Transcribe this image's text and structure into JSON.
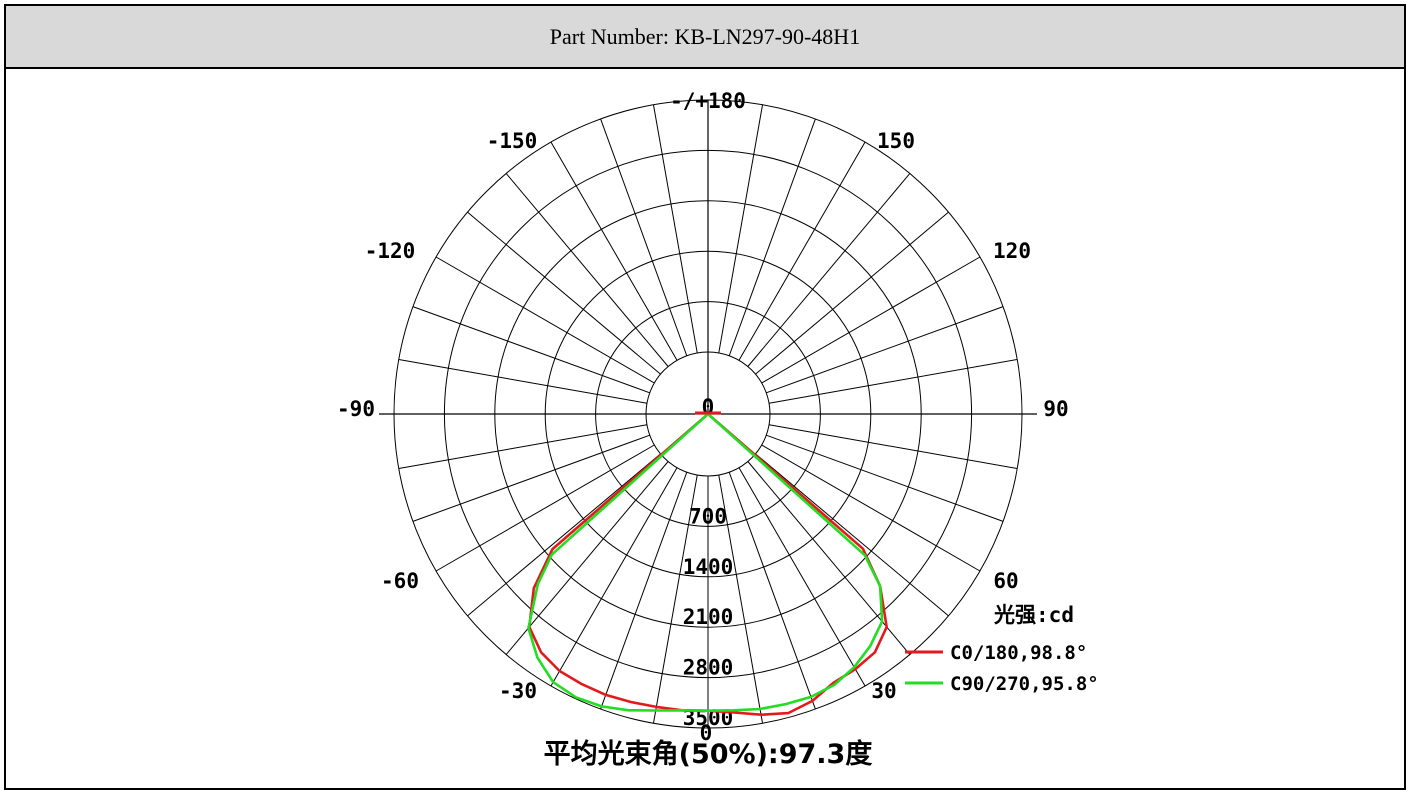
{
  "header": {
    "part_number": "Part Number: KB-LN297-90-48H1"
  },
  "chart_data": {
    "type": "polar",
    "angle_labels": [
      {
        "deg": 180,
        "text": "-/+180"
      },
      {
        "deg": -150,
        "text": "-150"
      },
      {
        "deg": 150,
        "text": "150"
      },
      {
        "deg": -120,
        "text": "-120"
      },
      {
        "deg": 120,
        "text": "120"
      },
      {
        "deg": -90,
        "text": "-90"
      },
      {
        "deg": 90,
        "text": "90"
      },
      {
        "deg": -60,
        "text": "-60"
      },
      {
        "deg": 60,
        "text": "60"
      },
      {
        "deg": -30,
        "text": "-30"
      },
      {
        "deg": 30,
        "text": "30"
      },
      {
        "deg": 0,
        "text": "0"
      }
    ],
    "radial_ticks": [
      "0",
      "700",
      "1400",
      "2100",
      "2800",
      "3500"
    ],
    "r_max": 3500,
    "legend_title": "光强:cd",
    "series": [
      {
        "name": "C0/180,98.8°",
        "color": "#e31a1c",
        "points": [
          [
            -49,
            2000
          ],
          [
            -45,
            2560
          ],
          [
            -40,
            3000
          ],
          [
            -35,
            3180
          ],
          [
            -30,
            3260
          ],
          [
            -25,
            3280
          ],
          [
            -20,
            3290
          ],
          [
            -15,
            3280
          ],
          [
            -10,
            3270
          ],
          [
            -5,
            3270
          ],
          [
            0,
            3260
          ],
          [
            5,
            3300
          ],
          [
            10,
            3380
          ],
          [
            15,
            3440
          ],
          [
            20,
            3380
          ],
          [
            25,
            3260
          ],
          [
            30,
            3230
          ],
          [
            35,
            3180
          ],
          [
            40,
            3000
          ],
          [
            45,
            2520
          ],
          [
            49,
            1990
          ]
        ]
      },
      {
        "name": "C90/270,95.8°",
        "color": "#22dd22",
        "points": [
          [
            -48,
            2060
          ],
          [
            -45,
            2480
          ],
          [
            -40,
            3020
          ],
          [
            -35,
            3270
          ],
          [
            -30,
            3440
          ],
          [
            -25,
            3480
          ],
          [
            -20,
            3460
          ],
          [
            -15,
            3400
          ],
          [
            -10,
            3320
          ],
          [
            -5,
            3270
          ],
          [
            0,
            3260
          ],
          [
            5,
            3270
          ],
          [
            10,
            3300
          ],
          [
            15,
            3310
          ],
          [
            20,
            3320
          ],
          [
            25,
            3290
          ],
          [
            30,
            3200
          ],
          [
            35,
            3070
          ],
          [
            40,
            2900
          ],
          [
            45,
            2520
          ],
          [
            48,
            2070
          ]
        ]
      }
    ]
  },
  "footer": {
    "avg_beam_angle": "平均光束角(50%):97.3度"
  }
}
